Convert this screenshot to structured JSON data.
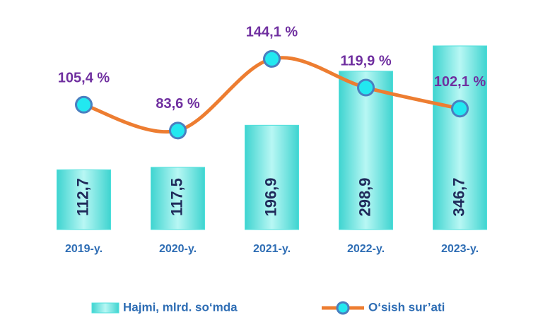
{
  "chart_data": {
    "type": "bar",
    "categories": [
      "2019-y.",
      "2020-y.",
      "2021-y.",
      "2022-y.",
      "2023-y."
    ],
    "series": [
      {
        "name": "Hajmi, mlrd. so‘mda",
        "type": "bar",
        "color": "#4fe0dc",
        "values": [
          112.7,
          117.5,
          196.9,
          298.9,
          346.7
        ],
        "value_labels": [
          "112,7",
          "117,5",
          "196,9",
          "298,9",
          "346,7"
        ]
      },
      {
        "name": "O‘sish sur’ati",
        "type": "line",
        "axis": "y2",
        "color": "#ed7d31",
        "values": [
          105.4,
          83.6,
          144.1,
          119.9,
          102.1
        ],
        "value_labels": [
          "105,4 %",
          "83,6 %",
          "144,1 %",
          "119,9 %",
          "102,1 %"
        ]
      }
    ],
    "ylim": [
      0,
      380
    ],
    "y2lim": [
      0,
      170
    ]
  }
}
